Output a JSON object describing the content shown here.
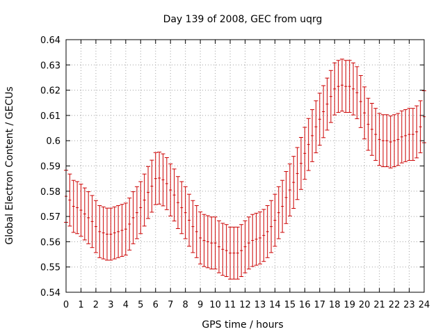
{
  "chart_data": {
    "type": "scatter",
    "title": "Day 139 of 2008, GEC from uqrg",
    "xlabel": "GPS time / hours",
    "ylabel": "Global Electron Content / GECUs",
    "xlim": [
      0,
      24
    ],
    "ylim": [
      0.54,
      0.64
    ],
    "x_ticks": [
      "0",
      "1",
      "2",
      "3",
      "4",
      "5",
      "6",
      "7",
      "8",
      "9",
      "10",
      "11",
      "12",
      "13",
      "14",
      "15",
      "16",
      "17",
      "18",
      "19",
      "20",
      "21",
      "22",
      "23",
      "24"
    ],
    "y_ticks": [
      "0.54",
      "0.55",
      "0.56",
      "0.57",
      "0.58",
      "0.59",
      "0.6",
      "0.61",
      "0.62",
      "0.63",
      "0.64"
    ],
    "grid": true,
    "error": 0.0103,
    "series": [
      {
        "name": "GEC",
        "color": "#cc0000",
        "x": [
          0.0,
          0.25,
          0.5,
          0.75,
          1.0,
          1.25,
          1.5,
          1.75,
          2.0,
          2.25,
          2.5,
          2.75,
          3.0,
          3.25,
          3.5,
          3.75,
          4.0,
          4.25,
          4.5,
          4.75,
          5.0,
          5.25,
          5.5,
          5.75,
          6.0,
          6.25,
          6.5,
          6.75,
          7.0,
          7.25,
          7.5,
          7.75,
          8.0,
          8.25,
          8.5,
          8.75,
          9.0,
          9.25,
          9.5,
          9.75,
          10.0,
          10.25,
          10.5,
          10.75,
          11.0,
          11.25,
          11.5,
          11.75,
          12.0,
          12.25,
          12.5,
          12.75,
          13.0,
          13.25,
          13.5,
          13.75,
          14.0,
          14.25,
          14.5,
          14.75,
          15.0,
          15.25,
          15.5,
          15.75,
          16.0,
          16.25,
          16.5,
          16.75,
          17.0,
          17.25,
          17.5,
          17.75,
          18.0,
          18.25,
          18.5,
          18.75,
          19.0,
          19.25,
          19.5,
          19.75,
          20.0,
          20.25,
          20.5,
          20.75,
          21.0,
          21.25,
          21.5,
          21.75,
          22.0,
          22.25,
          22.5,
          22.75,
          23.0,
          23.25,
          23.5,
          23.75,
          24.0
        ],
        "y": [
          0.578,
          0.5765,
          0.574,
          0.5735,
          0.5725,
          0.571,
          0.5695,
          0.568,
          0.566,
          0.564,
          0.5635,
          0.563,
          0.563,
          0.5635,
          0.564,
          0.5645,
          0.565,
          0.567,
          0.5695,
          0.5715,
          0.5735,
          0.5765,
          0.5795,
          0.582,
          0.585,
          0.5852,
          0.5845,
          0.583,
          0.5805,
          0.5785,
          0.5755,
          0.5735,
          0.5715,
          0.5685,
          0.566,
          0.564,
          0.5615,
          0.5605,
          0.56,
          0.5595,
          0.5595,
          0.558,
          0.557,
          0.5565,
          0.5555,
          0.5555,
          0.5555,
          0.5565,
          0.558,
          0.5595,
          0.5605,
          0.561,
          0.5615,
          0.5625,
          0.564,
          0.566,
          0.5685,
          0.5715,
          0.574,
          0.5775,
          0.5805,
          0.5835,
          0.587,
          0.591,
          0.595,
          0.5985,
          0.602,
          0.6055,
          0.6085,
          0.6115,
          0.6145,
          0.6175,
          0.6205,
          0.6215,
          0.622,
          0.6215,
          0.6215,
          0.6205,
          0.619,
          0.6155,
          0.611,
          0.6065,
          0.6045,
          0.6025,
          0.6005,
          0.6,
          0.6,
          0.5995,
          0.6,
          0.6005,
          0.6015,
          0.602,
          0.6025,
          0.6025,
          0.6035,
          0.6055,
          0.6095
        ]
      }
    ]
  }
}
